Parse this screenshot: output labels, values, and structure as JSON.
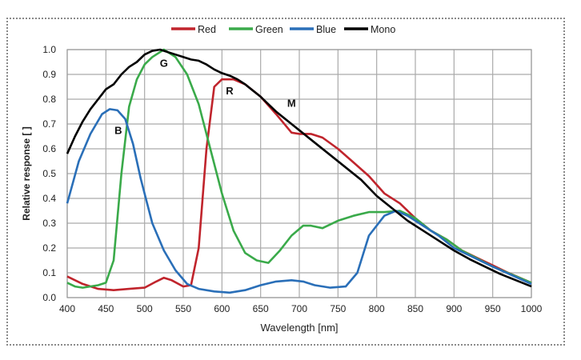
{
  "chart_data": {
    "type": "line",
    "title": "",
    "xlabel": "Wavelength [nm]",
    "ylabel": "Relative response [ ]",
    "xlim": [
      400,
      1000
    ],
    "ylim": [
      0.0,
      1.0
    ],
    "xticks": [
      400,
      450,
      500,
      550,
      600,
      650,
      700,
      750,
      800,
      850,
      900,
      950,
      1000
    ],
    "yticks": [
      "0.0",
      "0.1",
      "0.2",
      "0.3",
      "0.4",
      "0.5",
      "0.6",
      "0.7",
      "0.8",
      "0.9",
      "1.0"
    ],
    "grid": true,
    "legend_position": "top",
    "series": [
      {
        "name": "Red",
        "color": "#c0242c",
        "label": "R",
        "label_at": [
          610,
          0.82
        ],
        "x": [
          400,
          420,
          440,
          460,
          480,
          500,
          515,
          525,
          535,
          550,
          560,
          570,
          580,
          590,
          600,
          615,
          630,
          650,
          670,
          690,
          700,
          715,
          730,
          750,
          770,
          790,
          810,
          830,
          850,
          870,
          890,
          910,
          930,
          950,
          970,
          1000
        ],
        "y": [
          0.085,
          0.055,
          0.035,
          0.03,
          0.035,
          0.04,
          0.065,
          0.08,
          0.07,
          0.045,
          0.05,
          0.2,
          0.6,
          0.85,
          0.88,
          0.88,
          0.86,
          0.81,
          0.74,
          0.665,
          0.66,
          0.66,
          0.645,
          0.6,
          0.545,
          0.49,
          0.42,
          0.38,
          0.32,
          0.27,
          0.235,
          0.19,
          0.16,
          0.13,
          0.1,
          0.06
        ]
      },
      {
        "name": "Green",
        "color": "#3aaa4a",
        "label": "G",
        "label_at": [
          525,
          0.93
        ],
        "x": [
          400,
          410,
          420,
          440,
          450,
          460,
          470,
          480,
          490,
          500,
          510,
          525,
          540,
          555,
          570,
          585,
          600,
          615,
          630,
          645,
          660,
          675,
          690,
          705,
          715,
          730,
          750,
          770,
          790,
          810,
          830,
          850,
          870,
          890,
          910,
          950,
          1000
        ],
        "y": [
          0.06,
          0.045,
          0.04,
          0.05,
          0.06,
          0.15,
          0.5,
          0.77,
          0.88,
          0.94,
          0.97,
          1.0,
          0.97,
          0.9,
          0.78,
          0.6,
          0.42,
          0.27,
          0.18,
          0.15,
          0.14,
          0.19,
          0.25,
          0.29,
          0.29,
          0.28,
          0.31,
          0.33,
          0.345,
          0.345,
          0.35,
          0.32,
          0.27,
          0.235,
          0.19,
          0.125,
          0.06
        ]
      },
      {
        "name": "Blue",
        "color": "#2a6fb8",
        "label": "B",
        "label_at": [
          466,
          0.66
        ],
        "x": [
          400,
          415,
          430,
          445,
          455,
          465,
          475,
          485,
          495,
          510,
          525,
          540,
          555,
          570,
          590,
          610,
          630,
          650,
          670,
          690,
          705,
          720,
          740,
          760,
          775,
          790,
          810,
          825,
          840,
          860,
          880,
          900,
          950,
          1000
        ],
        "y": [
          0.38,
          0.55,
          0.66,
          0.74,
          0.76,
          0.755,
          0.72,
          0.62,
          0.48,
          0.3,
          0.19,
          0.11,
          0.055,
          0.035,
          0.025,
          0.02,
          0.03,
          0.05,
          0.065,
          0.07,
          0.065,
          0.05,
          0.04,
          0.045,
          0.1,
          0.25,
          0.33,
          0.35,
          0.33,
          0.29,
          0.25,
          0.2,
          0.125,
          0.055
        ]
      },
      {
        "name": "Mono",
        "color": "#000000",
        "label": "M",
        "label_at": [
          690,
          0.77
        ],
        "x": [
          400,
          410,
          420,
          430,
          440,
          450,
          460,
          470,
          480,
          490,
          500,
          510,
          520,
          530,
          540,
          550,
          560,
          570,
          580,
          590,
          600,
          610,
          620,
          630,
          640,
          650,
          660,
          670,
          680,
          690,
          700,
          720,
          740,
          760,
          780,
          800,
          820,
          840,
          860,
          880,
          900,
          920,
          940,
          960,
          980,
          1000
        ],
        "y": [
          0.58,
          0.65,
          0.71,
          0.76,
          0.8,
          0.84,
          0.86,
          0.9,
          0.93,
          0.95,
          0.98,
          0.995,
          1.0,
          0.99,
          0.98,
          0.97,
          0.96,
          0.955,
          0.94,
          0.92,
          0.905,
          0.895,
          0.88,
          0.86,
          0.835,
          0.81,
          0.78,
          0.75,
          0.725,
          0.7,
          0.675,
          0.625,
          0.575,
          0.525,
          0.475,
          0.41,
          0.36,
          0.31,
          0.27,
          0.23,
          0.19,
          0.155,
          0.125,
          0.095,
          0.07,
          0.045
        ]
      }
    ]
  }
}
